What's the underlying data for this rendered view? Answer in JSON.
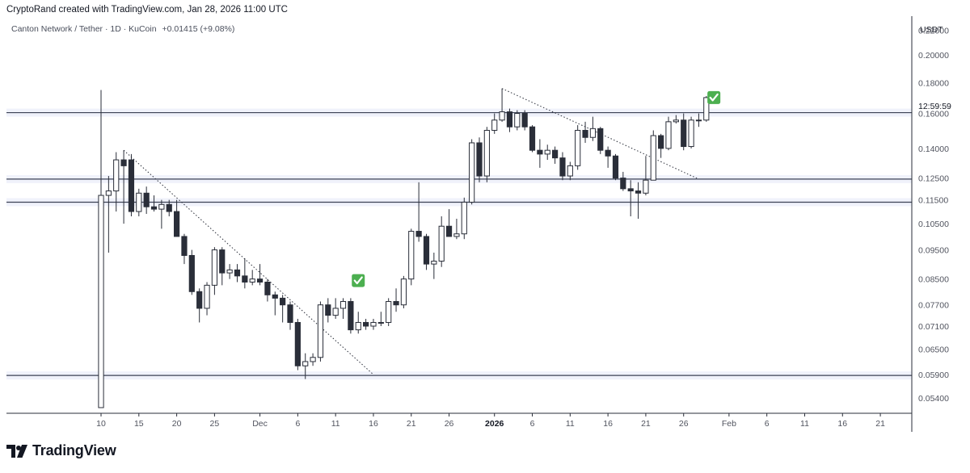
{
  "header": {
    "credit": "CryptoRand created with TradingView.com, Jan 28, 2026 11:00 UTC",
    "symbol": "Canton Network / Tether · 1D · KuCoin",
    "change": "+0.01415 (+9.08%)"
  },
  "price_axis": {
    "currency": "USDT",
    "countdown": "12:59:59",
    "labels": [
      "0.22000",
      "0.20000",
      "0.18000",
      "0.16000",
      "0.14000",
      "0.12500",
      "0.11500",
      "0.10500",
      "0.09500",
      "0.08500",
      "0.07700",
      "0.07100",
      "0.06500",
      "0.05900",
      "0.05400"
    ]
  },
  "time_axis": {
    "labels": [
      "10",
      "15",
      "20",
      "25",
      "Dec",
      "6",
      "11",
      "16",
      "21",
      "26",
      "2026",
      "6",
      "11",
      "16",
      "21",
      "26",
      "Feb",
      "6",
      "11",
      "16",
      "21"
    ]
  },
  "brand": {
    "name": "TradingView"
  },
  "colors": {
    "grid_border": "#e0e3eb",
    "level_line": "#3b4154",
    "level_band": "#e3e8f7",
    "candle_up_fill": "#ffffff",
    "candle_down_fill": "#2a2e39",
    "candle_border": "#2a2e39",
    "check": "#4caf50"
  },
  "chart_data": {
    "type": "candlestick",
    "symbol": "Canton Network / Tether",
    "interval": "1D",
    "exchange": "KuCoin",
    "ylim": [
      0.052,
      0.225
    ],
    "y_scale": "log",
    "horizontal_levels": [
      0.1605,
      0.1245,
      0.114,
      0.0588
    ],
    "trendlines": [
      {
        "from": [
          "2025-11-13",
          0.139
        ],
        "to": [
          "2025-12-16",
          0.059
        ]
      },
      {
        "from": [
          "2026-01-02",
          0.176
        ],
        "to": [
          "2026-01-28",
          0.1245
        ]
      }
    ],
    "annotations": [
      {
        "type": "check-icon",
        "date": "2025-12-14",
        "price": 0.0845
      },
      {
        "type": "check-icon",
        "date": "2026-01-30",
        "price": 0.17
      }
    ],
    "candles": [
      {
        "d": "2025-11-10",
        "o": 0.052,
        "h": 0.175,
        "l": 0.052,
        "c": 0.117
      },
      {
        "d": "2025-11-11",
        "o": 0.117,
        "h": 0.126,
        "l": 0.094,
        "c": 0.119
      },
      {
        "d": "2025-11-12",
        "o": 0.119,
        "h": 0.138,
        "l": 0.11,
        "c": 0.134
      },
      {
        "d": "2025-11-13",
        "o": 0.134,
        "h": 0.139,
        "l": 0.105,
        "c": 0.131
      },
      {
        "d": "2025-11-14",
        "o": 0.134,
        "h": 0.137,
        "l": 0.108,
        "c": 0.11
      },
      {
        "d": "2025-11-15",
        "o": 0.11,
        "h": 0.12,
        "l": 0.108,
        "c": 0.118
      },
      {
        "d": "2025-11-16",
        "o": 0.118,
        "h": 0.121,
        "l": 0.109,
        "c": 0.112
      },
      {
        "d": "2025-11-17",
        "o": 0.112,
        "h": 0.117,
        "l": 0.11,
        "c": 0.111
      },
      {
        "d": "2025-11-18",
        "o": 0.111,
        "h": 0.115,
        "l": 0.103,
        "c": 0.113
      },
      {
        "d": "2025-11-19",
        "o": 0.113,
        "h": 0.115,
        "l": 0.108,
        "c": 0.11
      },
      {
        "d": "2025-11-20",
        "o": 0.11,
        "h": 0.115,
        "l": 0.1,
        "c": 0.1
      },
      {
        "d": "2025-11-21",
        "o": 0.1,
        "h": 0.101,
        "l": 0.09,
        "c": 0.093
      },
      {
        "d": "2025-11-22",
        "o": 0.093,
        "h": 0.095,
        "l": 0.08,
        "c": 0.081
      },
      {
        "d": "2025-11-23",
        "o": 0.081,
        "h": 0.082,
        "l": 0.072,
        "c": 0.076
      },
      {
        "d": "2025-11-24",
        "o": 0.076,
        "h": 0.084,
        "l": 0.074,
        "c": 0.083
      },
      {
        "d": "2025-11-25",
        "o": 0.083,
        "h": 0.096,
        "l": 0.08,
        "c": 0.095
      },
      {
        "d": "2025-11-26",
        "o": 0.095,
        "h": 0.096,
        "l": 0.083,
        "c": 0.087
      },
      {
        "d": "2025-11-27",
        "o": 0.087,
        "h": 0.09,
        "l": 0.085,
        "c": 0.088
      },
      {
        "d": "2025-11-28",
        "o": 0.088,
        "h": 0.09,
        "l": 0.084,
        "c": 0.086
      },
      {
        "d": "2025-11-29",
        "o": 0.086,
        "h": 0.092,
        "l": 0.082,
        "c": 0.084
      },
      {
        "d": "2025-11-30",
        "o": 0.084,
        "h": 0.088,
        "l": 0.083,
        "c": 0.085
      },
      {
        "d": "2025-12-01",
        "o": 0.085,
        "h": 0.09,
        "l": 0.083,
        "c": 0.084
      },
      {
        "d": "2025-12-02",
        "o": 0.084,
        "h": 0.085,
        "l": 0.078,
        "c": 0.08
      },
      {
        "d": "2025-12-03",
        "o": 0.08,
        "h": 0.081,
        "l": 0.074,
        "c": 0.079
      },
      {
        "d": "2025-12-04",
        "o": 0.079,
        "h": 0.08,
        "l": 0.072,
        "c": 0.077
      },
      {
        "d": "2025-12-05",
        "o": 0.077,
        "h": 0.078,
        "l": 0.07,
        "c": 0.072
      },
      {
        "d": "2025-12-06",
        "o": 0.072,
        "h": 0.073,
        "l": 0.06,
        "c": 0.061
      },
      {
        "d": "2025-12-07",
        "o": 0.061,
        "h": 0.064,
        "l": 0.058,
        "c": 0.062
      },
      {
        "d": "2025-12-08",
        "o": 0.062,
        "h": 0.064,
        "l": 0.061,
        "c": 0.063
      },
      {
        "d": "2025-12-09",
        "o": 0.063,
        "h": 0.078,
        "l": 0.062,
        "c": 0.077
      },
      {
        "d": "2025-12-10",
        "o": 0.077,
        "h": 0.079,
        "l": 0.072,
        "c": 0.074
      },
      {
        "d": "2025-12-11",
        "o": 0.074,
        "h": 0.079,
        "l": 0.073,
        "c": 0.076
      },
      {
        "d": "2025-12-12",
        "o": 0.076,
        "h": 0.079,
        "l": 0.073,
        "c": 0.078
      },
      {
        "d": "2025-12-13",
        "o": 0.078,
        "h": 0.079,
        "l": 0.069,
        "c": 0.07
      },
      {
        "d": "2025-12-14",
        "o": 0.07,
        "h": 0.075,
        "l": 0.069,
        "c": 0.072
      },
      {
        "d": "2025-12-15",
        "o": 0.072,
        "h": 0.073,
        "l": 0.07,
        "c": 0.071
      },
      {
        "d": "2025-12-16",
        "o": 0.071,
        "h": 0.073,
        "l": 0.07,
        "c": 0.072
      },
      {
        "d": "2025-12-17",
        "o": 0.072,
        "h": 0.075,
        "l": 0.071,
        "c": 0.072
      },
      {
        "d": "2025-12-18",
        "o": 0.072,
        "h": 0.079,
        "l": 0.071,
        "c": 0.078
      },
      {
        "d": "2025-12-19",
        "o": 0.078,
        "h": 0.082,
        "l": 0.075,
        "c": 0.077
      },
      {
        "d": "2025-12-20",
        "o": 0.077,
        "h": 0.086,
        "l": 0.076,
        "c": 0.085
      },
      {
        "d": "2025-12-21",
        "o": 0.085,
        "h": 0.103,
        "l": 0.083,
        "c": 0.102
      },
      {
        "d": "2025-12-22",
        "o": 0.102,
        "h": 0.123,
        "l": 0.098,
        "c": 0.1
      },
      {
        "d": "2025-12-23",
        "o": 0.1,
        "h": 0.101,
        "l": 0.088,
        "c": 0.09
      },
      {
        "d": "2025-12-24",
        "o": 0.09,
        "h": 0.094,
        "l": 0.085,
        "c": 0.091
      },
      {
        "d": "2025-12-25",
        "o": 0.091,
        "h": 0.108,
        "l": 0.089,
        "c": 0.104
      },
      {
        "d": "2025-12-26",
        "o": 0.104,
        "h": 0.111,
        "l": 0.101,
        "c": 0.1
      },
      {
        "d": "2025-12-27",
        "o": 0.1,
        "h": 0.107,
        "l": 0.099,
        "c": 0.101
      },
      {
        "d": "2025-12-28",
        "o": 0.101,
        "h": 0.116,
        "l": 0.099,
        "c": 0.114
      },
      {
        "d": "2025-12-29",
        "o": 0.114,
        "h": 0.145,
        "l": 0.113,
        "c": 0.143
      },
      {
        "d": "2025-12-30",
        "o": 0.143,
        "h": 0.146,
        "l": 0.123,
        "c": 0.126
      },
      {
        "d": "2025-12-31",
        "o": 0.126,
        "h": 0.152,
        "l": 0.123,
        "c": 0.15
      },
      {
        "d": "2026-01-01",
        "o": 0.15,
        "h": 0.16,
        "l": 0.148,
        "c": 0.156
      },
      {
        "d": "2026-01-02",
        "o": 0.156,
        "h": 0.176,
        "l": 0.155,
        "c": 0.161
      },
      {
        "d": "2026-01-03",
        "o": 0.161,
        "h": 0.163,
        "l": 0.149,
        "c": 0.152
      },
      {
        "d": "2026-01-04",
        "o": 0.152,
        "h": 0.162,
        "l": 0.15,
        "c": 0.16
      },
      {
        "d": "2026-01-05",
        "o": 0.16,
        "h": 0.162,
        "l": 0.15,
        "c": 0.152
      },
      {
        "d": "2026-01-06",
        "o": 0.152,
        "h": 0.153,
        "l": 0.138,
        "c": 0.139
      },
      {
        "d": "2026-01-07",
        "o": 0.139,
        "h": 0.145,
        "l": 0.13,
        "c": 0.137
      },
      {
        "d": "2026-01-08",
        "o": 0.137,
        "h": 0.142,
        "l": 0.134,
        "c": 0.139
      },
      {
        "d": "2026-01-09",
        "o": 0.139,
        "h": 0.141,
        "l": 0.132,
        "c": 0.135
      },
      {
        "d": "2026-01-10",
        "o": 0.135,
        "h": 0.138,
        "l": 0.124,
        "c": 0.126
      },
      {
        "d": "2026-01-11",
        "o": 0.126,
        "h": 0.133,
        "l": 0.124,
        "c": 0.131
      },
      {
        "d": "2026-01-12",
        "o": 0.131,
        "h": 0.153,
        "l": 0.129,
        "c": 0.15
      },
      {
        "d": "2026-01-13",
        "o": 0.15,
        "h": 0.155,
        "l": 0.143,
        "c": 0.146
      },
      {
        "d": "2026-01-14",
        "o": 0.146,
        "h": 0.158,
        "l": 0.144,
        "c": 0.151
      },
      {
        "d": "2026-01-15",
        "o": 0.151,
        "h": 0.152,
        "l": 0.137,
        "c": 0.139
      },
      {
        "d": "2026-01-16",
        "o": 0.139,
        "h": 0.141,
        "l": 0.13,
        "c": 0.136
      },
      {
        "d": "2026-01-17",
        "o": 0.136,
        "h": 0.137,
        "l": 0.124,
        "c": 0.125
      },
      {
        "d": "2026-01-18",
        "o": 0.125,
        "h": 0.128,
        "l": 0.119,
        "c": 0.12
      },
      {
        "d": "2026-01-19",
        "o": 0.12,
        "h": 0.124,
        "l": 0.108,
        "c": 0.119
      },
      {
        "d": "2026-01-20",
        "o": 0.119,
        "h": 0.123,
        "l": 0.107,
        "c": 0.118
      },
      {
        "d": "2026-01-21",
        "o": 0.118,
        "h": 0.136,
        "l": 0.117,
        "c": 0.124
      },
      {
        "d": "2026-01-22",
        "o": 0.124,
        "h": 0.15,
        "l": 0.124,
        "c": 0.147
      },
      {
        "d": "2026-01-23",
        "o": 0.147,
        "h": 0.148,
        "l": 0.135,
        "c": 0.14
      },
      {
        "d": "2026-01-24",
        "o": 0.14,
        "h": 0.158,
        "l": 0.139,
        "c": 0.155
      },
      {
        "d": "2026-01-25",
        "o": 0.155,
        "h": 0.159,
        "l": 0.154,
        "c": 0.156
      },
      {
        "d": "2026-01-26",
        "o": 0.156,
        "h": 0.16,
        "l": 0.139,
        "c": 0.141
      },
      {
        "d": "2026-01-27",
        "o": 0.141,
        "h": 0.158,
        "l": 0.14,
        "c": 0.156
      },
      {
        "d": "2026-01-28",
        "o": 0.156,
        "h": 0.16,
        "l": 0.152,
        "c": 0.156
      },
      {
        "d": "2026-01-29",
        "o": 0.156,
        "h": 0.171,
        "l": 0.155,
        "c": 0.17
      }
    ]
  }
}
